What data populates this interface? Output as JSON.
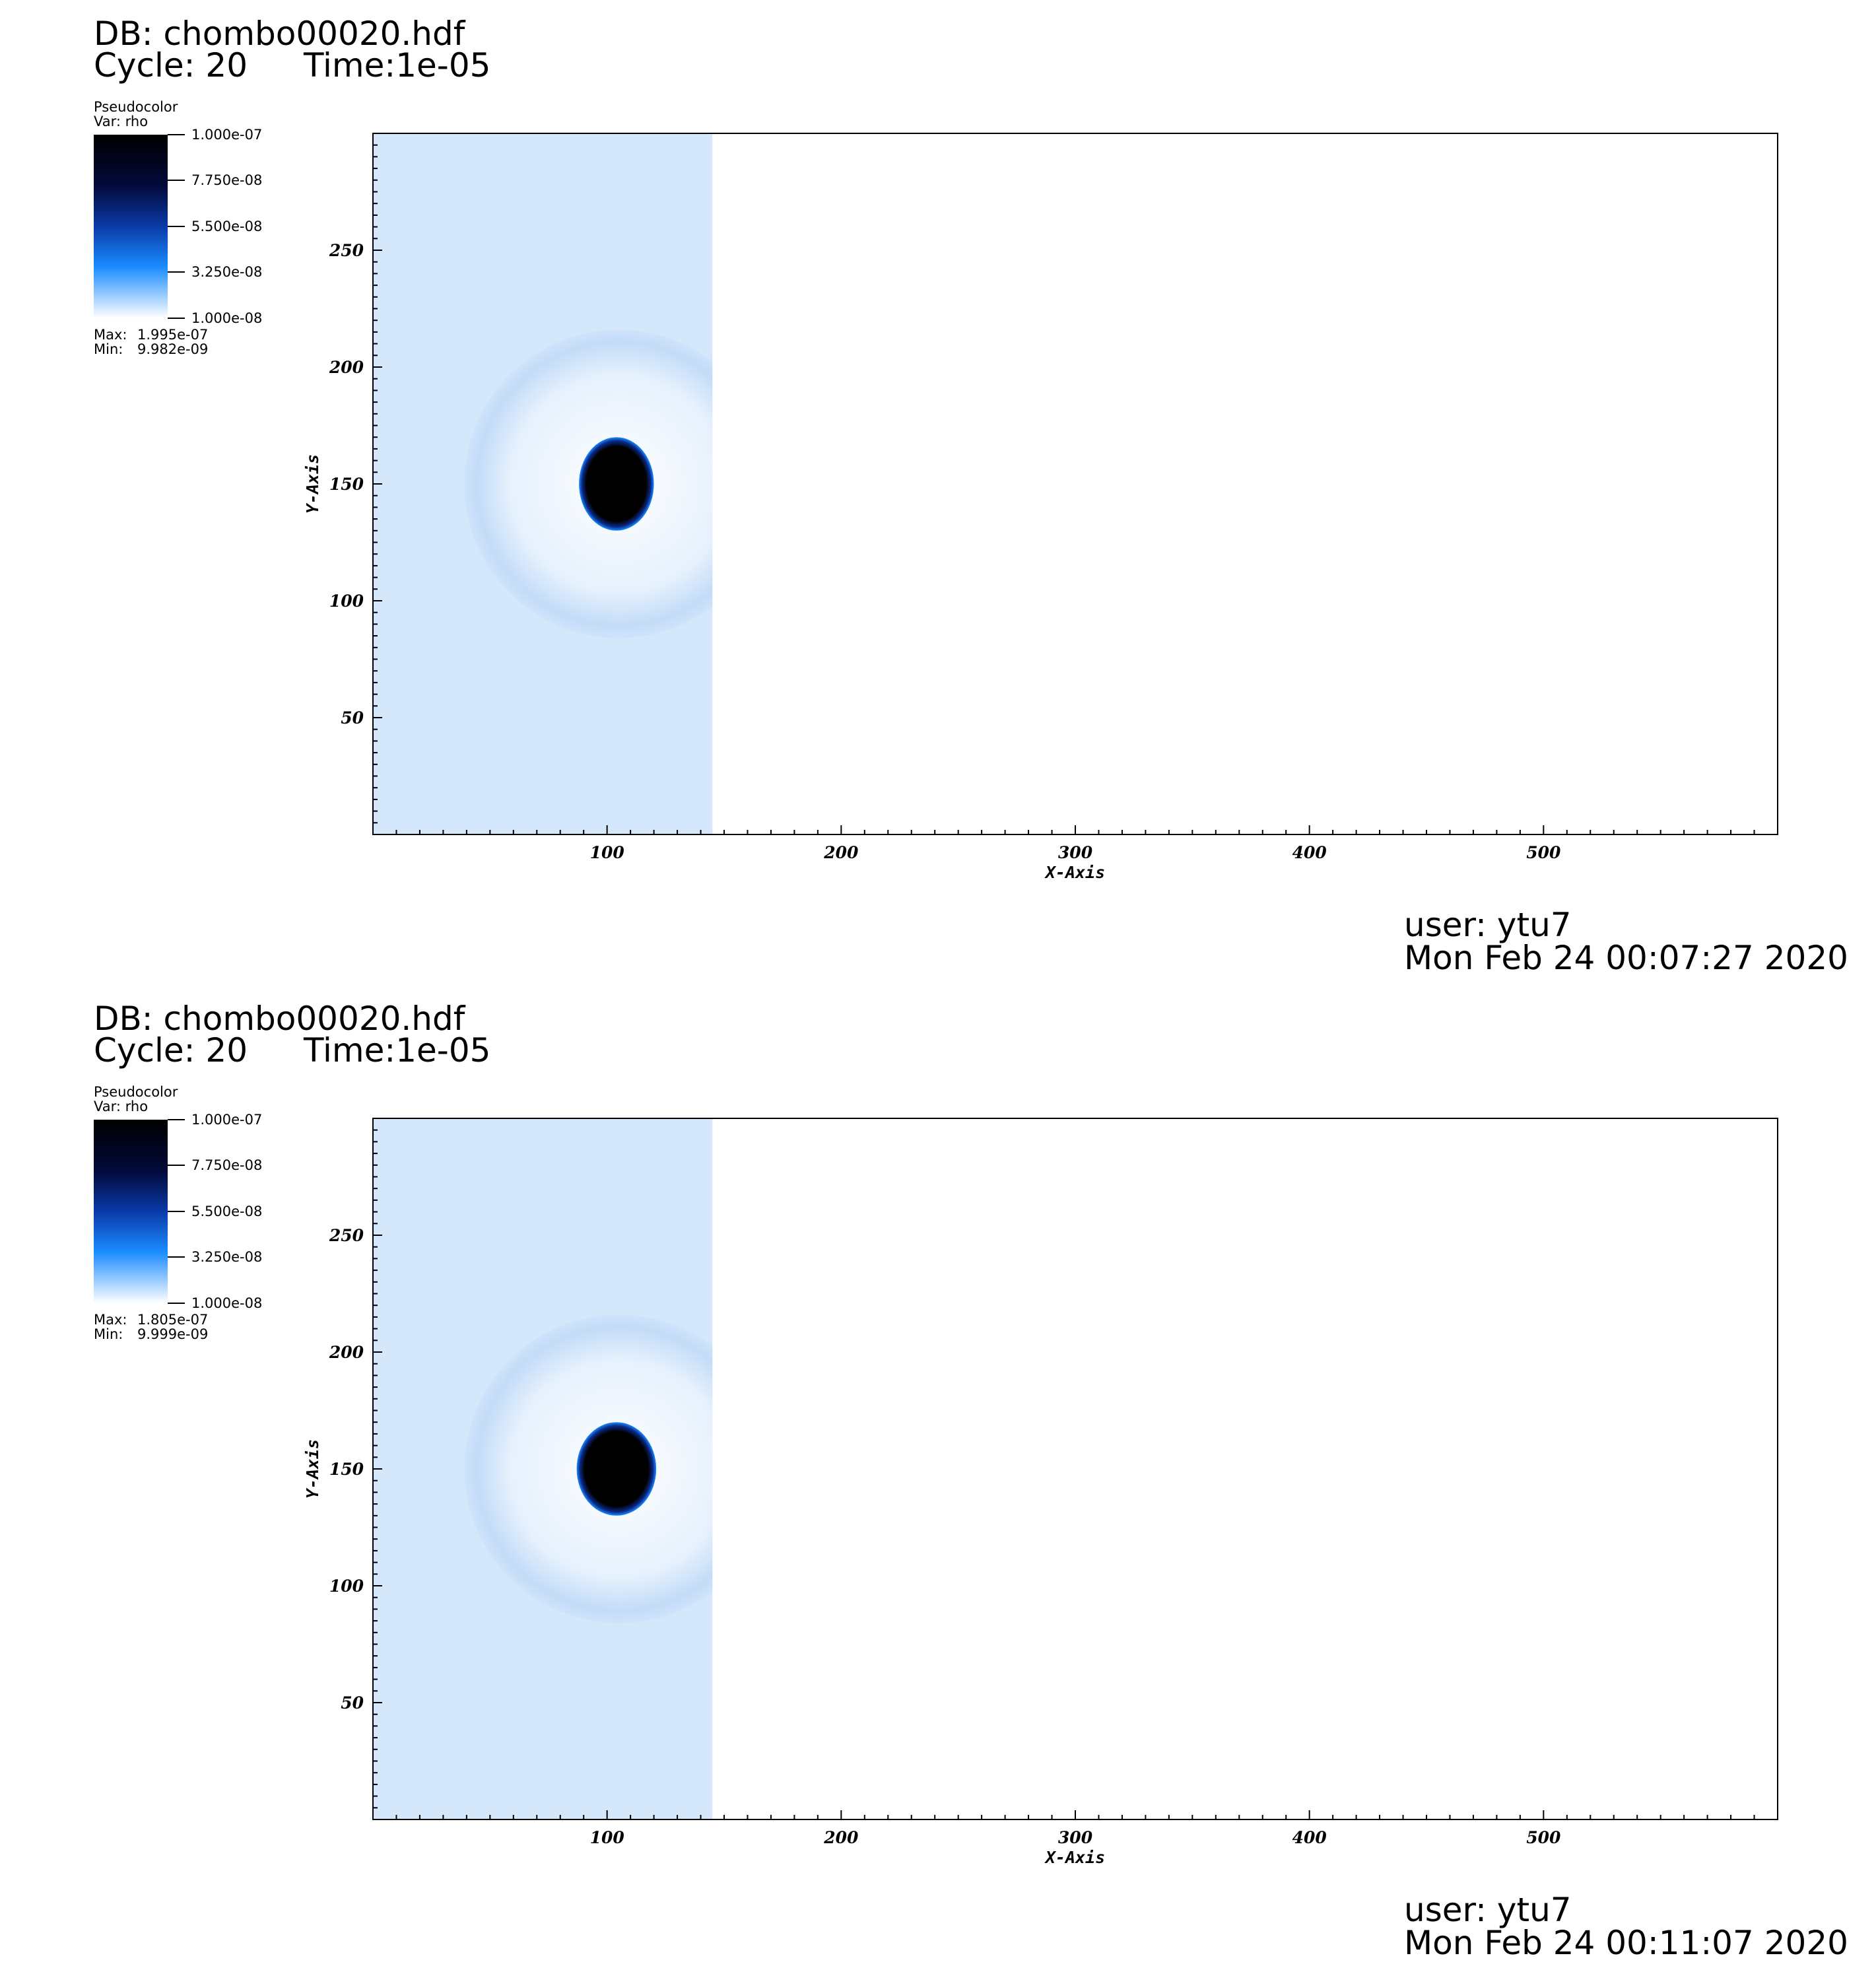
{
  "panels": [
    {
      "db": "DB: chombo00020.hdf",
      "cycle": "Cycle: 20",
      "time": "Time:1e-05",
      "legend": {
        "plot_type": "Pseudocolor",
        "var": "Var: rho",
        "ticks": [
          "1.000e-07",
          "7.750e-08",
          "5.500e-08",
          "3.250e-08",
          "1.000e-08"
        ],
        "max_label": "Max:",
        "max": "1.995e-07",
        "min_label": "Min:",
        "min": "9.982e-09"
      },
      "user": "user: ytu7",
      "date": "Mon Feb 24 00:07:27 2020"
    },
    {
      "db": "DB: chombo00020.hdf",
      "cycle": "Cycle: 20",
      "time": "Time:1e-05",
      "legend": {
        "plot_type": "Pseudocolor",
        "var": "Var: rho",
        "ticks": [
          "1.000e-07",
          "7.750e-08",
          "5.500e-08",
          "3.250e-08",
          "1.000e-08"
        ],
        "max_label": "Max:",
        "max": "1.805e-07",
        "min_label": "Min:",
        "min": "9.999e-09"
      },
      "user": "user: ytu7",
      "date": "Mon Feb 24 00:11:07 2020"
    }
  ],
  "chart_data": [
    {
      "type": "heatmap",
      "variable": "rho",
      "xlabel": "X-Axis",
      "ylabel": "Y-Axis",
      "xlim": [
        0,
        600
      ],
      "ylim": [
        0,
        300
      ],
      "xticks": [
        100,
        200,
        300,
        400,
        500
      ],
      "yticks": [
        50,
        100,
        150,
        200,
        250
      ],
      "colorbar_range": [
        1e-08,
        1e-07
      ],
      "colormap": [
        "#ffffff",
        "#1a8cff",
        "#0a3aa8",
        "#020a3a",
        "#000000"
      ],
      "regions": {
        "shocked_slab_x_end": 145,
        "bow_shell_center": [
          105,
          150
        ],
        "bow_shell_radius": 66,
        "dense_clump_center": [
          104,
          150
        ],
        "dense_clump_radii": [
          16,
          20
        ],
        "background_color": "#d4e7fb"
      },
      "max": 1.995e-07,
      "min": 9.982e-09
    },
    {
      "type": "heatmap",
      "variable": "rho",
      "xlabel": "X-Axis",
      "ylabel": "Y-Axis",
      "xlim": [
        0,
        600
      ],
      "ylim": [
        0,
        300
      ],
      "xticks": [
        100,
        200,
        300,
        400,
        500
      ],
      "yticks": [
        50,
        100,
        150,
        200,
        250
      ],
      "colorbar_range": [
        1e-08,
        1e-07
      ],
      "colormap": [
        "#ffffff",
        "#1a8cff",
        "#0a3aa8",
        "#020a3a",
        "#000000"
      ],
      "regions": {
        "shocked_slab_x_end": 145,
        "bow_shell_center": [
          105,
          150
        ],
        "bow_shell_radius": 66,
        "dense_clump_center": [
          104,
          150
        ],
        "dense_clump_radii": [
          17,
          20
        ],
        "background_color": "#d4e7fb"
      },
      "max": 1.805e-07,
      "min": 9.999e-09
    }
  ]
}
